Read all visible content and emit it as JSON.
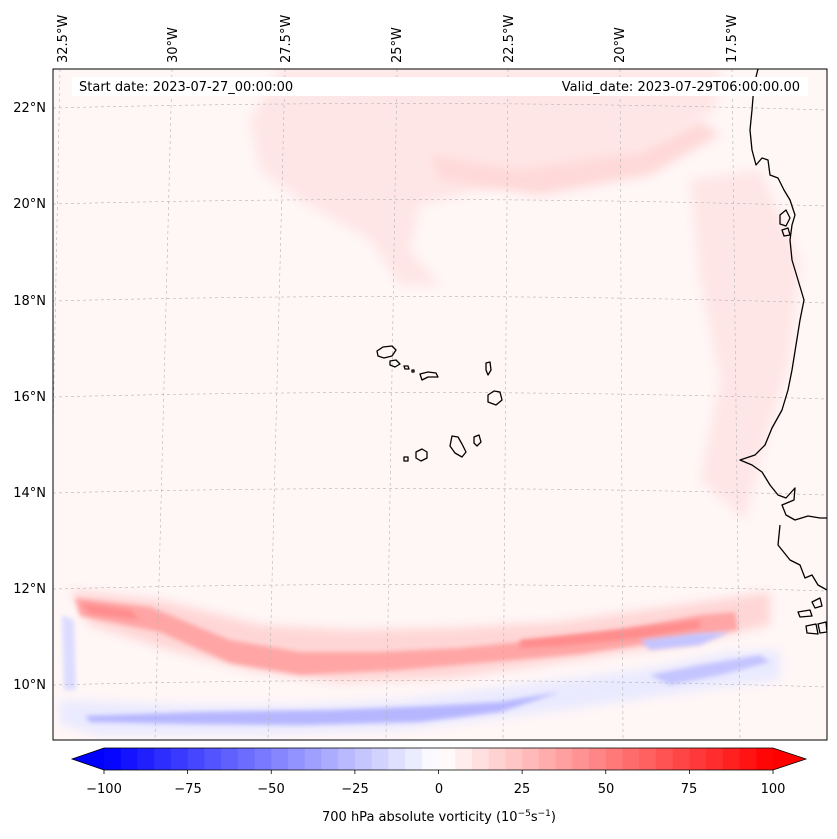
{
  "map": {
    "start_date_label": "Start date: 2023-07-27_00:00:00",
    "valid_date_label": "Valid_date: 2023-07-29T06:00:00.00",
    "lon_labels": [
      "32.5°W",
      "30°W",
      "27.5°W",
      "25°W",
      "22.5°W",
      "20°W",
      "17.5°W"
    ],
    "lat_labels": [
      "22°N",
      "20°N",
      "18°N",
      "16°N",
      "14°N",
      "12°N",
      "10°N"
    ],
    "gridlines": "dashed, light grey",
    "colormap": "bwr",
    "colors": {
      "negative": "#0000ff",
      "zero": "#ffffff",
      "positive": "#ff0000",
      "coastline": "#000000"
    }
  },
  "colorbar": {
    "label_prefix": "700 hPa absolute vorticity (10",
    "label_exp1": "−5",
    "label_mid": "s",
    "label_exp2": "−1",
    "label_suffix": ")",
    "min": -100,
    "max": 100,
    "ticks": [
      "−100",
      "−75",
      "−50",
      "−25",
      "0",
      "25",
      "50",
      "75",
      "100"
    ],
    "extend": "both"
  }
}
